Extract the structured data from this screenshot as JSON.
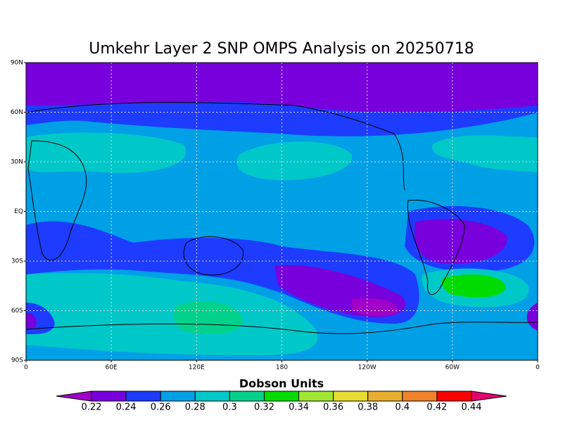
{
  "title": "Umkehr Layer 2 SNP OMPS Analysis on 20250718",
  "map": {
    "lat_labels": [
      "90N",
      "60N",
      "30N",
      "EQ",
      "30S",
      "60S",
      "90S"
    ],
    "lon_labels": [
      "0",
      "60E",
      "120E",
      "180",
      "120W",
      "60W",
      "0"
    ]
  },
  "colorbar": {
    "label": "Dobson Units",
    "ticks": [
      0.22,
      0.24,
      0.26,
      0.28,
      0.3,
      0.32,
      0.34,
      0.36,
      0.38,
      0.4,
      0.42,
      0.44
    ],
    "colors": [
      "#a000c8",
      "#7800dc",
      "#1e3cff",
      "#00a0e6",
      "#00c8c8",
      "#00d28c",
      "#00dc00",
      "#a0e632",
      "#e6dc32",
      "#e6af2d",
      "#f08228",
      "#fa0000",
      "#e6006e"
    ]
  }
}
